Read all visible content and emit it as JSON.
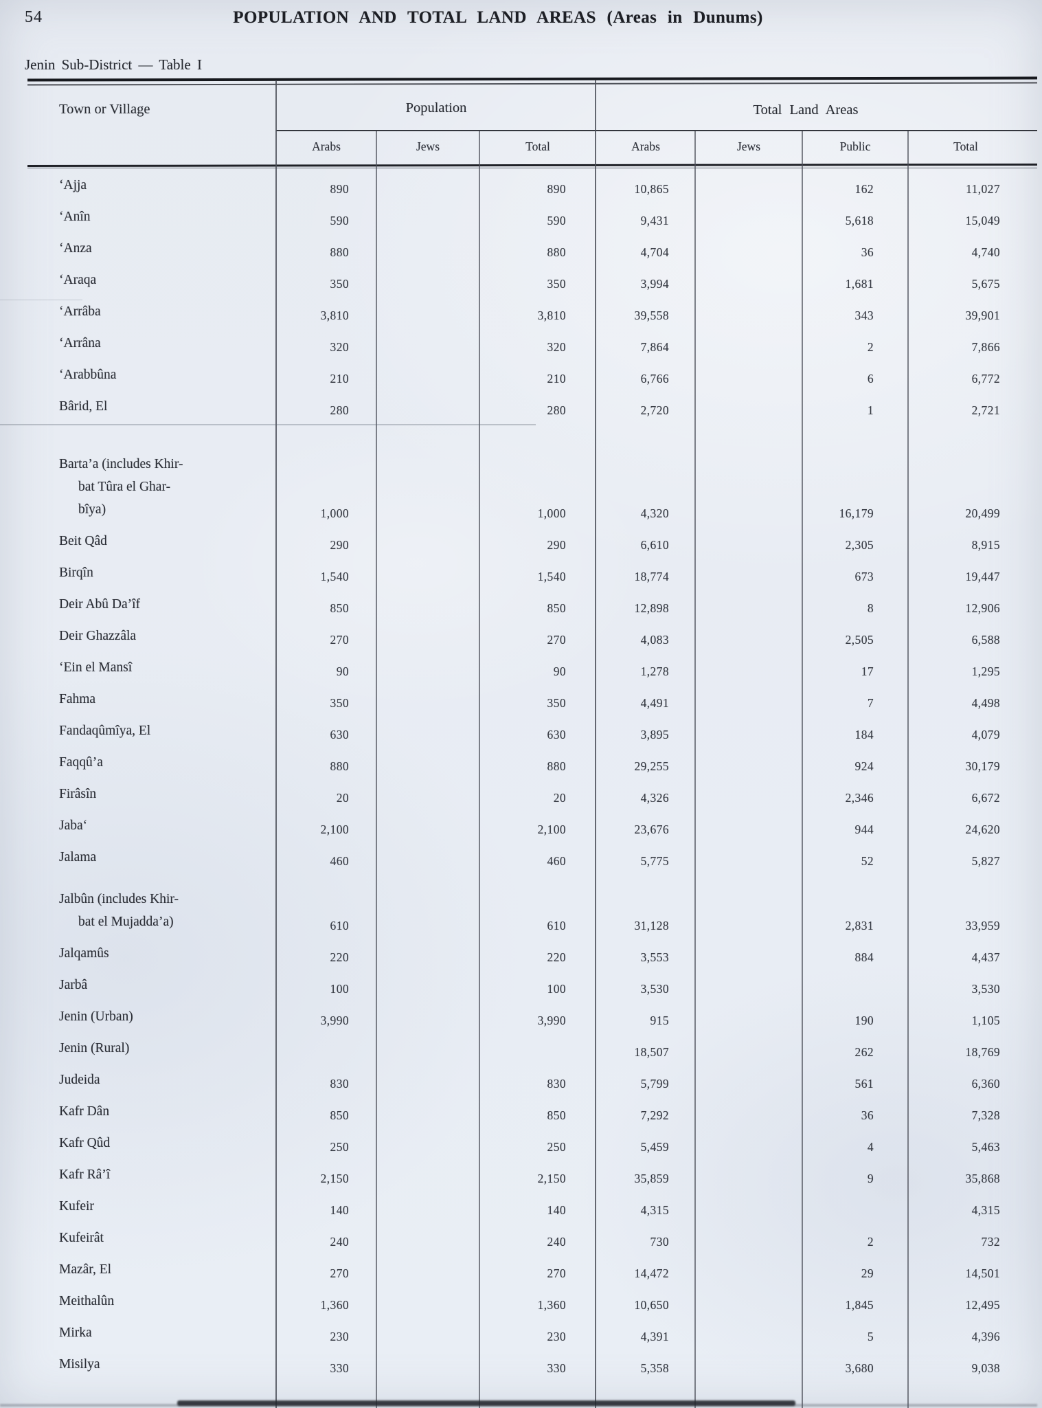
{
  "page": {
    "number": "54",
    "title": "POPULATION AND TOTAL LAND AREAS (Areas in Dunums)",
    "subtitle": "Jenin Sub-District — Table I"
  },
  "table": {
    "village_header": "Town or Village",
    "groups": [
      {
        "label": "Population",
        "cols": [
          "Arabs",
          "Jews",
          "Total"
        ]
      },
      {
        "label": "Total Land Areas",
        "cols": [
          "Arabs",
          "Jews",
          "Public",
          "Total"
        ]
      }
    ],
    "rows": [
      {
        "name": [
          "‘Ajja"
        ],
        "pop_arabs": "890",
        "pop_jews": "",
        "pop_total": "890",
        "land_arabs": "10,865",
        "land_jews": "",
        "land_public": "162",
        "land_total": "11,027"
      },
      {
        "name": [
          "‘Anîn"
        ],
        "pop_arabs": "590",
        "pop_jews": "",
        "pop_total": "590",
        "land_arabs": "9,431",
        "land_jews": "",
        "land_public": "5,618",
        "land_total": "15,049"
      },
      {
        "name": [
          "‘Anza"
        ],
        "pop_arabs": "880",
        "pop_jews": "",
        "pop_total": "880",
        "land_arabs": "4,704",
        "land_jews": "",
        "land_public": "36",
        "land_total": "4,740"
      },
      {
        "name": [
          "‘Araqa"
        ],
        "pop_arabs": "350",
        "pop_jews": "",
        "pop_total": "350",
        "land_arabs": "3,994",
        "land_jews": "",
        "land_public": "1,681",
        "land_total": "5,675"
      },
      {
        "name": [
          "‘Arrâba"
        ],
        "pop_arabs": "3,810",
        "pop_jews": "",
        "pop_total": "3,810",
        "land_arabs": "39,558",
        "land_jews": "",
        "land_public": "343",
        "land_total": "39,901"
      },
      {
        "name": [
          "‘Arrâna"
        ],
        "pop_arabs": "320",
        "pop_jews": "",
        "pop_total": "320",
        "land_arabs": "7,864",
        "land_jews": "",
        "land_public": "2",
        "land_total": "7,866"
      },
      {
        "name": [
          "‘Arabbûna"
        ],
        "pop_arabs": "210",
        "pop_jews": "",
        "pop_total": "210",
        "land_arabs": "6,766",
        "land_jews": "",
        "land_public": "6",
        "land_total": "6,772"
      },
      {
        "name": [
          "Bârid, El"
        ],
        "pop_arabs": "280",
        "pop_jews": "",
        "pop_total": "280",
        "land_arabs": "2,720",
        "land_jews": "",
        "land_public": "1",
        "land_total": "2,721"
      },
      {
        "name": [
          "Barta’a (includes Khir-",
          "bat Tûra el Ghar-",
          "bîya)"
        ],
        "pop_arabs": "1,000",
        "pop_jews": "",
        "pop_total": "1,000",
        "land_arabs": "4,320",
        "land_jews": "",
        "land_public": "16,179",
        "land_total": "20,499"
      },
      {
        "name": [
          "Beit Qâd"
        ],
        "pop_arabs": "290",
        "pop_jews": "",
        "pop_total": "290",
        "land_arabs": "6,610",
        "land_jews": "",
        "land_public": "2,305",
        "land_total": "8,915"
      },
      {
        "name": [
          "Birqîn"
        ],
        "pop_arabs": "1,540",
        "pop_jews": "",
        "pop_total": "1,540",
        "land_arabs": "18,774",
        "land_jews": "",
        "land_public": "673",
        "land_total": "19,447"
      },
      {
        "name": [
          "Deir Abû Da’îf"
        ],
        "pop_arabs": "850",
        "pop_jews": "",
        "pop_total": "850",
        "land_arabs": "12,898",
        "land_jews": "",
        "land_public": "8",
        "land_total": "12,906"
      },
      {
        "name": [
          "Deir Ghazzâla"
        ],
        "pop_arabs": "270",
        "pop_jews": "",
        "pop_total": "270",
        "land_arabs": "4,083",
        "land_jews": "",
        "land_public": "2,505",
        "land_total": "6,588"
      },
      {
        "name": [
          "‘Ein el Mansî"
        ],
        "pop_arabs": "90",
        "pop_jews": "",
        "pop_total": "90",
        "land_arabs": "1,278",
        "land_jews": "",
        "land_public": "17",
        "land_total": "1,295"
      },
      {
        "name": [
          "Fahma"
        ],
        "pop_arabs": "350",
        "pop_jews": "",
        "pop_total": "350",
        "land_arabs": "4,491",
        "land_jews": "",
        "land_public": "7",
        "land_total": "4,498"
      },
      {
        "name": [
          "Fandaqûmîya, El"
        ],
        "pop_arabs": "630",
        "pop_jews": "",
        "pop_total": "630",
        "land_arabs": "3,895",
        "land_jews": "",
        "land_public": "184",
        "land_total": "4,079"
      },
      {
        "name": [
          "Faqqû’a"
        ],
        "pop_arabs": "880",
        "pop_jews": "",
        "pop_total": "880",
        "land_arabs": "29,255",
        "land_jews": "",
        "land_public": "924",
        "land_total": "30,179"
      },
      {
        "name": [
          "Firâsîn"
        ],
        "pop_arabs": "20",
        "pop_jews": "",
        "pop_total": "20",
        "land_arabs": "4,326",
        "land_jews": "",
        "land_public": "2,346",
        "land_total": "6,672"
      },
      {
        "name": [
          "Jaba‘"
        ],
        "pop_arabs": "2,100",
        "pop_jews": "",
        "pop_total": "2,100",
        "land_arabs": "23,676",
        "land_jews": "",
        "land_public": "944",
        "land_total": "24,620"
      },
      {
        "name": [
          "Jalama"
        ],
        "pop_arabs": "460",
        "pop_jews": "",
        "pop_total": "460",
        "land_arabs": "5,775",
        "land_jews": "",
        "land_public": "52",
        "land_total": "5,827"
      },
      {
        "name": [
          "Jalbûn (includes Khir-",
          "bat el Mujadda’a)"
        ],
        "pop_arabs": "610",
        "pop_jews": "",
        "pop_total": "610",
        "land_arabs": "31,128",
        "land_jews": "",
        "land_public": "2,831",
        "land_total": "33,959"
      },
      {
        "name": [
          "Jalqamûs"
        ],
        "pop_arabs": "220",
        "pop_jews": "",
        "pop_total": "220",
        "land_arabs": "3,553",
        "land_jews": "",
        "land_public": "884",
        "land_total": "4,437"
      },
      {
        "name": [
          "Jarbâ"
        ],
        "pop_arabs": "100",
        "pop_jews": "",
        "pop_total": "100",
        "land_arabs": "3,530",
        "land_jews": "",
        "land_public": "",
        "land_total": "3,530"
      },
      {
        "name": [
          "Jenin (Urban)"
        ],
        "pop_arabs": "3,990",
        "pop_jews": "",
        "pop_total": "3,990",
        "land_arabs": "915",
        "land_jews": "",
        "land_public": "190",
        "land_total": "1,105"
      },
      {
        "name": [
          "Jenin (Rural)"
        ],
        "pop_arabs": "",
        "pop_jews": "",
        "pop_total": "",
        "land_arabs": "18,507",
        "land_jews": "",
        "land_public": "262",
        "land_total": "18,769"
      },
      {
        "name": [
          "Judeida"
        ],
        "pop_arabs": "830",
        "pop_jews": "",
        "pop_total": "830",
        "land_arabs": "5,799",
        "land_jews": "",
        "land_public": "561",
        "land_total": "6,360"
      },
      {
        "name": [
          "Kafr Dân"
        ],
        "pop_arabs": "850",
        "pop_jews": "",
        "pop_total": "850",
        "land_arabs": "7,292",
        "land_jews": "",
        "land_public": "36",
        "land_total": "7,328"
      },
      {
        "name": [
          "Kafr Qûd"
        ],
        "pop_arabs": "250",
        "pop_jews": "",
        "pop_total": "250",
        "land_arabs": "5,459",
        "land_jews": "",
        "land_public": "4",
        "land_total": "5,463"
      },
      {
        "name": [
          "Kafr Râ’î"
        ],
        "pop_arabs": "2,150",
        "pop_jews": "",
        "pop_total": "2,150",
        "land_arabs": "35,859",
        "land_jews": "",
        "land_public": "9",
        "land_total": "35,868"
      },
      {
        "name": [
          "Kufeir"
        ],
        "pop_arabs": "140",
        "pop_jews": "",
        "pop_total": "140",
        "land_arabs": "4,315",
        "land_jews": "",
        "land_public": "",
        "land_total": "4,315"
      },
      {
        "name": [
          "Kufeirât"
        ],
        "pop_arabs": "240",
        "pop_jews": "",
        "pop_total": "240",
        "land_arabs": "730",
        "land_jews": "",
        "land_public": "2",
        "land_total": "732"
      },
      {
        "name": [
          "Mazâr, El"
        ],
        "pop_arabs": "270",
        "pop_jews": "",
        "pop_total": "270",
        "land_arabs": "14,472",
        "land_jews": "",
        "land_public": "29",
        "land_total": "14,501"
      },
      {
        "name": [
          "Meithalûn"
        ],
        "pop_arabs": "1,360",
        "pop_jews": "",
        "pop_total": "1,360",
        "land_arabs": "10,650",
        "land_jews": "",
        "land_public": "1,845",
        "land_total": "12,495"
      },
      {
        "name": [
          "Mirka"
        ],
        "pop_arabs": "230",
        "pop_jews": "",
        "pop_total": "230",
        "land_arabs": "4,391",
        "land_jews": "",
        "land_public": "5",
        "land_total": "4,396"
      },
      {
        "name": [
          "Misilya"
        ],
        "pop_arabs": "330",
        "pop_jews": "",
        "pop_total": "330",
        "land_arabs": "5,358",
        "land_jews": "",
        "land_public": "3,680",
        "land_total": "9,038"
      }
    ]
  }
}
